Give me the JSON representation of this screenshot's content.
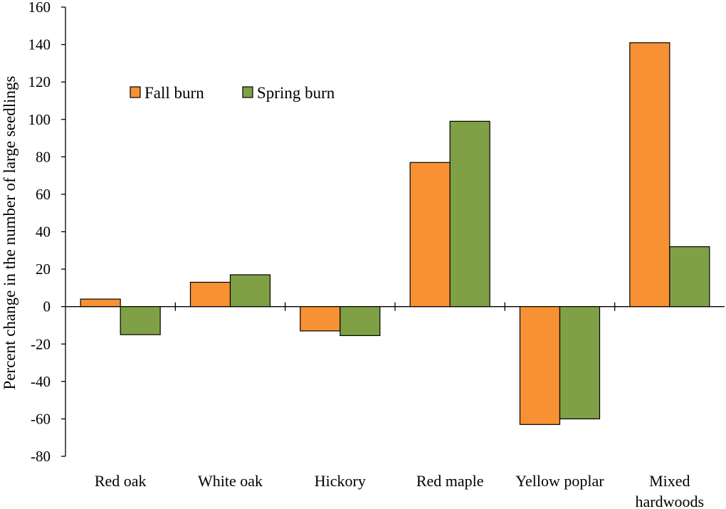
{
  "chart_data": {
    "type": "bar",
    "title": "",
    "xlabel": "",
    "ylabel": "Percent change in the number of large seedlings",
    "categories": [
      [
        "Red oak"
      ],
      [
        "White oak"
      ],
      [
        "Hickory"
      ],
      [
        "Red maple"
      ],
      [
        "Yellow poplar"
      ],
      [
        "Mixed",
        "hardwoods"
      ]
    ],
    "series": [
      {
        "name": "Fall burn",
        "color": "#f79133",
        "values": [
          4,
          13,
          -13,
          77,
          -63,
          141
        ]
      },
      {
        "name": "Spring burn",
        "color": "#80a045",
        "values": [
          -15,
          17,
          -15.5,
          99,
          -60,
          32
        ]
      }
    ],
    "ylim": [
      -80,
      160
    ],
    "yticks": [
      -80,
      -60,
      -40,
      -20,
      0,
      20,
      40,
      60,
      80,
      100,
      120,
      140,
      160
    ],
    "grid": false,
    "legend": {
      "position": "top-left"
    }
  }
}
